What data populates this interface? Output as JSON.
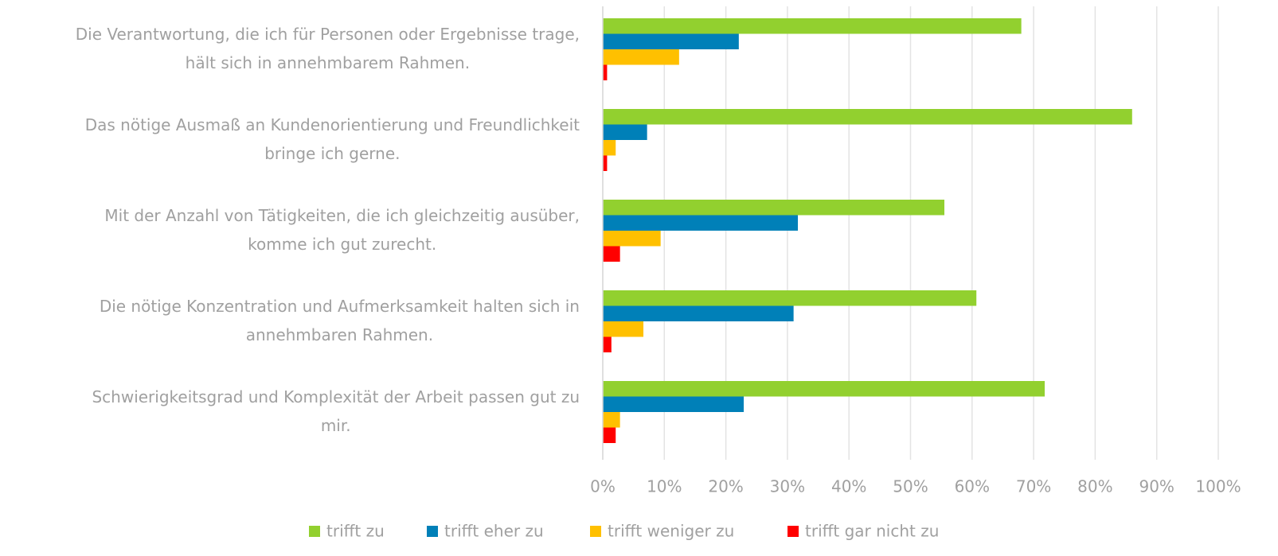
{
  "chart_data": {
    "type": "bar",
    "orientation": "horizontal",
    "categories": [
      "Die Verantwortung, die ich für Personen oder Ergebnisse trage,\nhält sich in annehmbarem Rahmen.",
      "Das nötige Ausmaß an Kundenorientierung und Freundlichkeit\nbringe ich gerne.",
      "Mit der Anzahl von Tätigkeiten, die ich gleichzeitig ausüber,\nkomme ich gut zurecht.",
      "Die nötige Konzentration und Aufmerksamkeit halten sich in\nannehmbaren Rahmen.",
      "Schwierigkeitsgrad und Komplexität der Arbeit passen gut zu\nmir."
    ],
    "series": [
      {
        "name": "trifft zu",
        "color": "#92d02f",
        "values": [
          68.0,
          86.0,
          55.5,
          60.7,
          71.8
        ]
      },
      {
        "name": "trifft eher zu",
        "color": "#0080b8",
        "values": [
          22.1,
          7.2,
          31.7,
          31.0,
          22.9
        ]
      },
      {
        "name": "trifft weniger zu",
        "color": "#ffc000",
        "values": [
          12.4,
          2.1,
          9.4,
          6.6,
          2.8
        ]
      },
      {
        "name": "trifft gar nicht zu",
        "color": "#ff0000",
        "values": [
          0.7,
          0.7,
          2.8,
          1.4,
          2.1
        ]
      }
    ],
    "xlim": [
      0,
      100
    ],
    "xticks": [
      {
        "value": 0,
        "label": "0%"
      },
      {
        "value": 10,
        "label": "10%"
      },
      {
        "value": 20,
        "label": "20%"
      },
      {
        "value": 30,
        "label": "30%"
      },
      {
        "value": 40,
        "label": "40%"
      },
      {
        "value": 50,
        "label": "50%"
      },
      {
        "value": 60,
        "label": "60%"
      },
      {
        "value": 70,
        "label": "70%"
      },
      {
        "value": 80,
        "label": "80%"
      },
      {
        "value": 90,
        "label": "90%"
      },
      {
        "value": 100,
        "label": "100%"
      }
    ],
    "grid": true,
    "legend": "bottom"
  }
}
